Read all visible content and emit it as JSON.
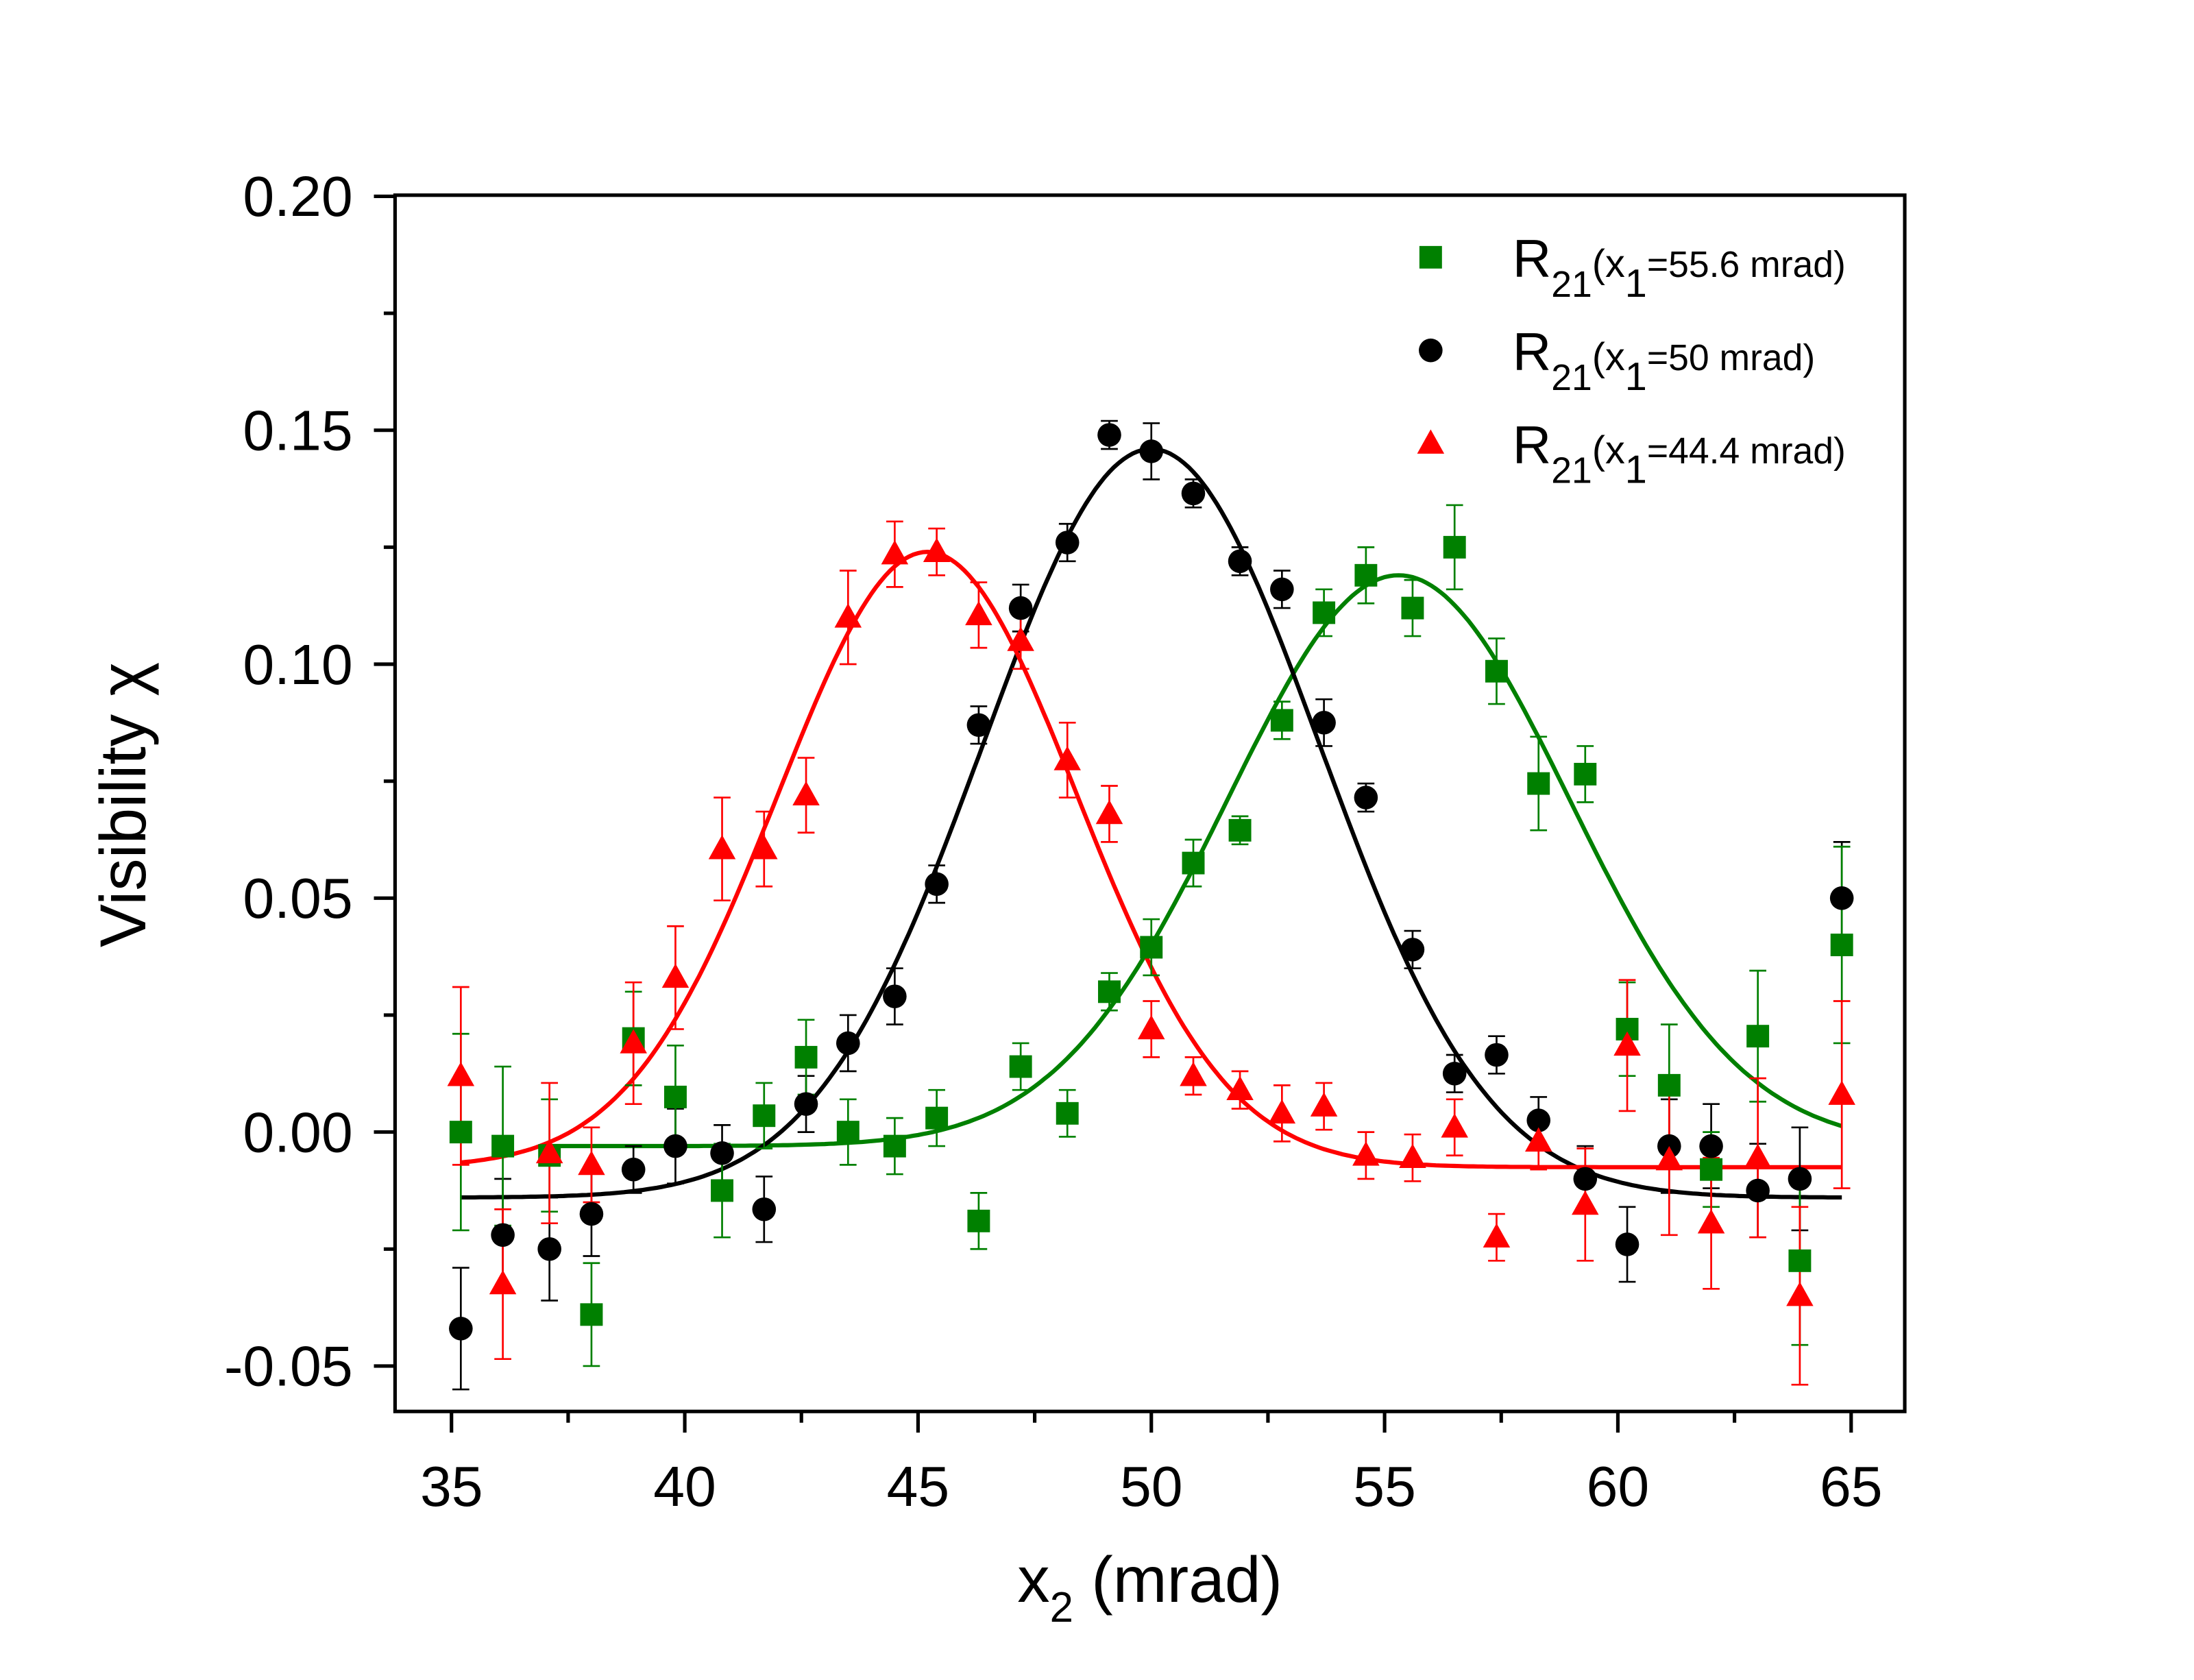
{
  "chart_data": {
    "type": "scatter",
    "title": "",
    "xlabel": {
      "main": "x",
      "sub": "2",
      "rest": " (mrad)"
    },
    "ylabel": "Visibility χ",
    "xlim": [
      34,
      66
    ],
    "ylim": [
      -0.06,
      0.2
    ],
    "xticks": [
      35,
      40,
      45,
      50,
      55,
      60,
      65
    ],
    "xtick_labels": [
      "35",
      "40",
      "45",
      "50",
      "55",
      "60",
      "65"
    ],
    "yticks": [
      -0.05,
      0,
      0.05,
      0.1,
      0.15,
      0.2
    ],
    "ytick_labels": [
      "-0.05",
      "0.00",
      "0.05",
      "0.10",
      "0.15",
      "0.20"
    ],
    "grid": false,
    "legend_placement": "top-right",
    "x": [
      35.2,
      36.1,
      37.1,
      38.0,
      38.9,
      39.8,
      40.8,
      41.7,
      42.6,
      43.5,
      44.5,
      45.4,
      46.3,
      47.2,
      48.2,
      49.1,
      50.0,
      50.9,
      51.9,
      52.8,
      53.7,
      54.6,
      55.6,
      56.5,
      57.4,
      58.3,
      59.3,
      60.2,
      61.1,
      62.0,
      63.0,
      63.9,
      64.8
    ],
    "series": [
      {
        "name": {
          "main": "R",
          "sub": "21",
          "open": "(x",
          "sub2": "1",
          "rest": "=55.6 mrad)"
        },
        "color": "#008000",
        "marker": "square",
        "y": [
          0.0,
          -0.003,
          -0.005,
          -0.039,
          0.02,
          0.0075,
          -0.0125,
          0.0035,
          0.016,
          0.0,
          -0.003,
          0.003,
          -0.019,
          0.014,
          0.004,
          0.03,
          0.0395,
          0.0575,
          0.0645,
          0.088,
          0.111,
          0.119,
          0.112,
          0.125,
          0.0985,
          0.0745,
          0.0765,
          0.022,
          0.01,
          -0.008,
          0.0205,
          -0.0275,
          0.04
        ],
        "err": [
          0.021,
          0.017,
          0.012,
          0.011,
          0.01,
          0.011,
          0.01,
          0.007,
          0.008,
          0.007,
          0.006,
          0.006,
          0.006,
          0.005,
          0.005,
          0.004,
          0.006,
          0.005,
          0.003,
          0.004,
          0.005,
          0.006,
          0.006,
          0.009,
          0.007,
          0.01,
          0.006,
          0.01,
          0.013,
          0.008,
          0.014,
          0.018,
          0.021
        ],
        "fit": {
          "model": "gaussian",
          "baseline": -0.003,
          "amplitude": 0.122,
          "center": 55.3,
          "sigma": 3.67,
          "range": [
            37.0,
            64.8
          ]
        }
      },
      {
        "name": {
          "main": "R",
          "sub": "21",
          "open": "(x",
          "sub2": "1",
          "rest": "=50 mrad)"
        },
        "color": "#000000",
        "marker": "circle",
        "y": [
          -0.042,
          -0.022,
          -0.025,
          -0.0175,
          -0.008,
          -0.003,
          -0.0045,
          -0.0165,
          0.006,
          0.019,
          0.029,
          0.053,
          0.087,
          0.112,
          0.126,
          0.149,
          0.1455,
          0.1365,
          0.122,
          0.116,
          0.0875,
          0.0715,
          0.039,
          0.0125,
          0.0165,
          0.0025,
          -0.01,
          -0.024,
          -0.003,
          -0.003,
          -0.0125,
          -0.01,
          0.05
        ],
        "err": [
          0.013,
          0.012,
          0.011,
          0.009,
          0.005,
          0.008,
          0.006,
          0.007,
          0.006,
          0.006,
          0.006,
          0.004,
          0.004,
          0.005,
          0.004,
          0.003,
          0.006,
          0.003,
          0.003,
          0.004,
          0.005,
          0.003,
          0.004,
          0.004,
          0.004,
          0.005,
          0.007,
          0.008,
          0.01,
          0.009,
          0.01,
          0.011,
          0.012
        ],
        "fit": {
          "model": "gaussian",
          "baseline": -0.014,
          "amplitude": 0.16,
          "center": 50.0,
          "sigma": 3.6,
          "range": [
            35.2,
            64.8
          ]
        }
      },
      {
        "name": {
          "main": "R",
          "sub": "21",
          "open": "(x",
          "sub2": "1",
          "rest": "=44.4 mrad)"
        },
        "color": "#ff0000",
        "marker": "triangle",
        "y": [
          0.012,
          -0.0325,
          -0.0045,
          -0.007,
          0.019,
          0.033,
          0.0605,
          0.0605,
          0.072,
          0.11,
          0.1235,
          0.124,
          0.1105,
          0.105,
          0.0795,
          0.068,
          0.022,
          0.012,
          0.009,
          0.004,
          0.0055,
          -0.005,
          -0.0055,
          0.001,
          -0.0225,
          -0.002,
          -0.0155,
          0.0185,
          -0.006,
          -0.0195,
          -0.0055,
          -0.035,
          0.008
        ],
        "err": [
          0.019,
          0.016,
          0.015,
          0.008,
          0.013,
          0.011,
          0.011,
          0.008,
          0.008,
          0.01,
          0.007,
          0.005,
          0.007,
          0.006,
          0.008,
          0.006,
          0.006,
          0.004,
          0.004,
          0.006,
          0.005,
          0.005,
          0.005,
          0.006,
          0.005,
          0.006,
          0.012,
          0.014,
          0.016,
          0.014,
          0.017,
          0.019,
          0.02
        ],
        "fit": {
          "model": "gaussian",
          "baseline": -0.0075,
          "amplitude": 0.1315,
          "center": 45.2,
          "sigma": 3.2,
          "range": [
            35.2,
            64.8
          ]
        }
      }
    ]
  }
}
